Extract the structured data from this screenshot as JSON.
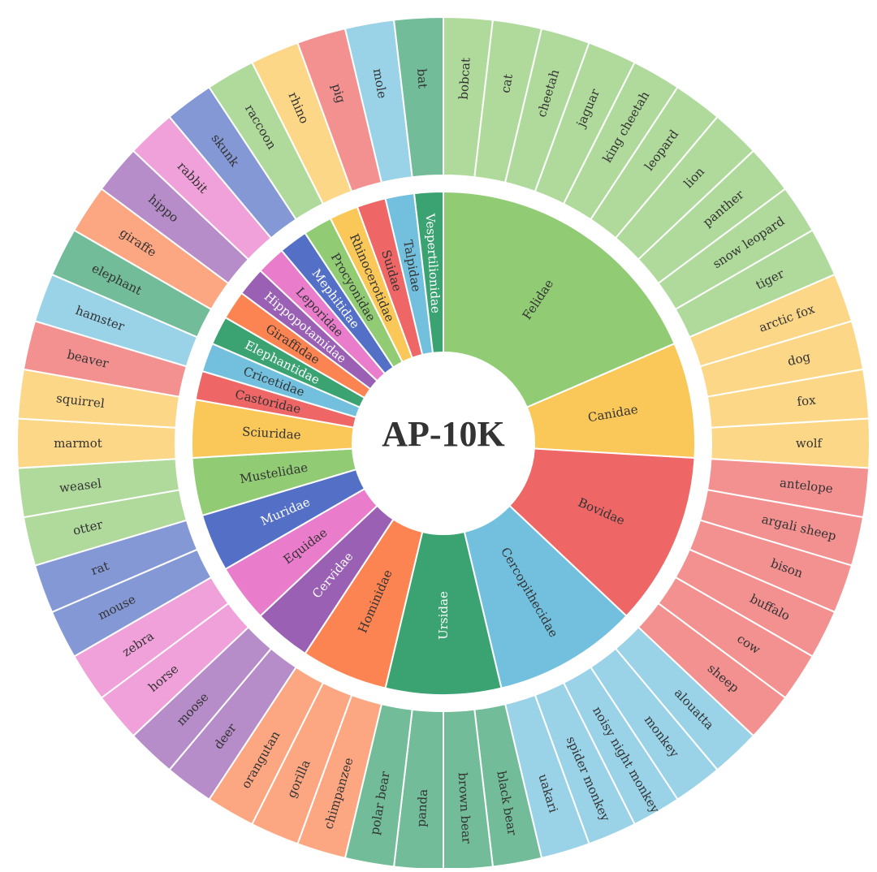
{
  "chart_data": {
    "type": "sunburst",
    "title": "AP-10K",
    "families": [
      {
        "name": "Felidae",
        "color": "#91cc75",
        "label_color": "#333333",
        "species": [
          "bobcat",
          "cat",
          "cheetah",
          "jaguar",
          "king cheetah",
          "leopard",
          "lion",
          "panther",
          "snow leopard",
          "tiger"
        ]
      },
      {
        "name": "Canidae",
        "color": "#fac858",
        "label_color": "#333333",
        "species": [
          "arctic fox",
          "dog",
          "fox",
          "wolf"
        ]
      },
      {
        "name": "Bovidae",
        "color": "#ee6666",
        "label_color": "#333333",
        "species": [
          "antelope",
          "argali sheep",
          "bison",
          "buffalo",
          "cow",
          "sheep"
        ]
      },
      {
        "name": "Cercopithecidae",
        "color": "#73c0de",
        "label_color": "#333333",
        "species": [
          "alouatta",
          "monkey",
          "noisy night monkey",
          "spider monkey",
          "uakari"
        ]
      },
      {
        "name": "Ursidae",
        "color": "#3ba272",
        "label_color": "#ffffff",
        "species": [
          "black bear",
          "brown bear",
          "panda",
          "polar bear"
        ]
      },
      {
        "name": "Hominidae",
        "color": "#fc8452",
        "label_color": "#333333",
        "species": [
          "chimpanzee",
          "gorilla",
          "orangutan"
        ]
      },
      {
        "name": "Cervidae",
        "color": "#9a60b4",
        "label_color": "#ffffff",
        "species": [
          "deer",
          "moose"
        ]
      },
      {
        "name": "Equidae",
        "color": "#ea7ccc",
        "label_color": "#333333",
        "species": [
          "horse",
          "zebra"
        ]
      },
      {
        "name": "Muridae",
        "color": "#5470c6",
        "label_color": "#ffffff",
        "species": [
          "mouse",
          "rat"
        ]
      },
      {
        "name": "Mustelidae",
        "color": "#91cc75",
        "label_color": "#333333",
        "species": [
          "otter",
          "weasel"
        ]
      },
      {
        "name": "Sciuridae",
        "color": "#fac858",
        "label_color": "#333333",
        "species": [
          "marmot",
          "squirrel"
        ]
      },
      {
        "name": "Castoridae",
        "color": "#ee6666",
        "label_color": "#333333",
        "species": [
          "beaver"
        ]
      },
      {
        "name": "Cricetidae",
        "color": "#73c0de",
        "label_color": "#333333",
        "species": [
          "hamster"
        ]
      },
      {
        "name": "Elephantidae",
        "color": "#3ba272",
        "label_color": "#ffffff",
        "species": [
          "elephant"
        ]
      },
      {
        "name": "Giraffidae",
        "color": "#fc8452",
        "label_color": "#333333",
        "species": [
          "giraffe"
        ]
      },
      {
        "name": "Hippopotamidae",
        "color": "#9a60b4",
        "label_color": "#ffffff",
        "species": [
          "hippo"
        ]
      },
      {
        "name": "Leporidae",
        "color": "#ea7ccc",
        "label_color": "#333333",
        "species": [
          "rabbit"
        ]
      },
      {
        "name": "Mephitidae",
        "color": "#5470c6",
        "label_color": "#ffffff",
        "species": [
          "skunk"
        ]
      },
      {
        "name": "Procyonidae",
        "color": "#91cc75",
        "label_color": "#333333",
        "species": [
          "raccoon"
        ]
      },
      {
        "name": "Rhinocerotidae",
        "color": "#fac858",
        "label_color": "#333333",
        "species": [
          "rhino"
        ]
      },
      {
        "name": "Suidae",
        "color": "#ee6666",
        "label_color": "#333333",
        "species": [
          "pig"
        ]
      },
      {
        "name": "Talpidae",
        "color": "#73c0de",
        "label_color": "#333333",
        "species": [
          "mole"
        ]
      },
      {
        "name": "Vespertilionidae",
        "color": "#3ba272",
        "label_color": "#ffffff",
        "species": [
          "bat"
        ]
      }
    ]
  }
}
